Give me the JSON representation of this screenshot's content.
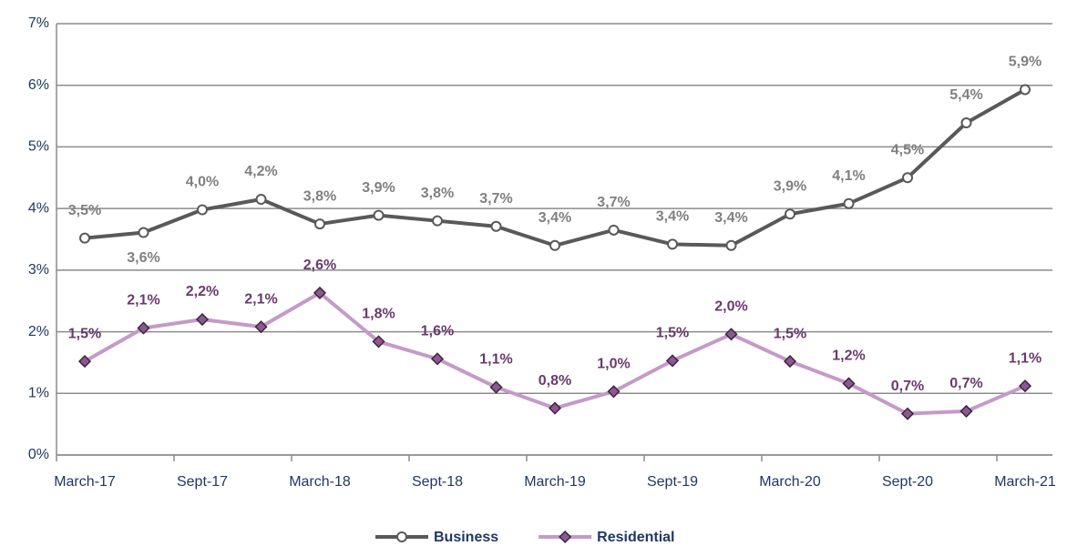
{
  "chart_data": {
    "type": "line",
    "categories": [
      "March-17",
      null,
      "Sept-17",
      null,
      "March-18",
      null,
      "Sept-18",
      null,
      "March-19",
      null,
      "Sept-19",
      null,
      "March-20",
      null,
      "Sept-20",
      null,
      "March-21"
    ],
    "series": [
      {
        "name": "Business",
        "color": "#595959",
        "label_color": "#808080",
        "marker": "circle",
        "values": [
          3.52,
          3.61,
          3.98,
          4.15,
          3.75,
          3.89,
          3.8,
          3.71,
          3.4,
          3.65,
          3.42,
          3.4,
          3.91,
          4.08,
          4.5,
          5.39,
          5.93
        ],
        "value_labels": [
          "3,5%",
          "3,6%",
          "4,0%",
          "4,2%",
          "3,8%",
          "3,9%",
          "3,8%",
          "3,7%",
          "3,4%",
          "3,7%",
          "3,4%",
          "3,4%",
          "3,9%",
          "4,1%",
          "4,5%",
          "5,4%",
          "5,9%"
        ]
      },
      {
        "name": "Residential",
        "color": "#c49ac8",
        "label_color": "#6a3a6d",
        "marker": "diamond",
        "values": [
          1.52,
          2.06,
          2.2,
          2.08,
          2.63,
          1.84,
          1.56,
          1.1,
          0.76,
          1.03,
          1.53,
          1.96,
          1.52,
          1.16,
          0.67,
          0.71,
          1.12
        ],
        "value_labels": [
          "1,5%",
          "2,1%",
          "2,2%",
          "2,1%",
          "2,6%",
          "1,8%",
          "1,6%",
          "1,1%",
          "0,8%",
          "1,0%",
          "1,5%",
          "2,0%",
          "1,5%",
          "1,2%",
          "0,7%",
          "0,7%",
          "1,1%"
        ]
      }
    ],
    "ylim": [
      0,
      7
    ],
    "yticks": [
      {
        "value": 0,
        "label": "0%"
      },
      {
        "value": 1,
        "label": "1%"
      },
      {
        "value": 2,
        "label": "2%"
      },
      {
        "value": 3,
        "label": "3%"
      },
      {
        "value": 4,
        "label": "4%"
      },
      {
        "value": 5,
        "label": "5%"
      },
      {
        "value": 6,
        "label": "6%"
      },
      {
        "value": 7,
        "label": "7%"
      }
    ],
    "grid": true,
    "legend": "bottom"
  }
}
